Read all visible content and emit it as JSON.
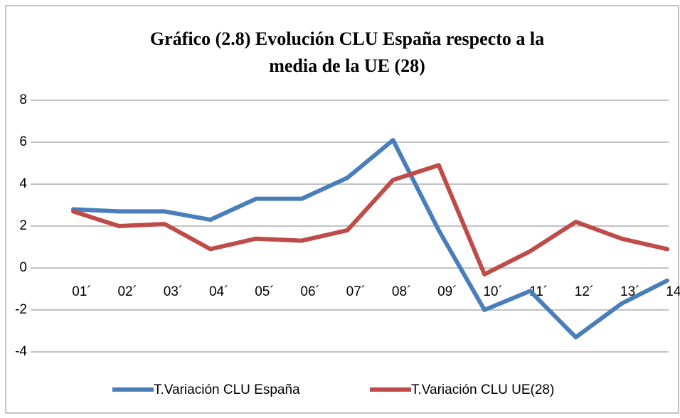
{
  "chart_data": {
    "type": "line",
    "title": [
      "Gráfico (2.8) Evolución CLU España respecto a la",
      "media de la UE (28)"
    ],
    "categories": [
      "01´",
      "02´",
      "03´",
      "04´",
      "05´",
      "06´",
      "07´",
      "08´",
      "09´",
      "10´",
      "11´",
      "12´",
      "13´",
      "14´"
    ],
    "series": [
      {
        "name": "T.Variación CLU España",
        "color": "#4a7ebb",
        "values": [
          2.8,
          2.7,
          2.7,
          2.3,
          3.3,
          3.3,
          4.3,
          6.1,
          1.8,
          -2.0,
          -1.1,
          -3.3,
          -1.7,
          -0.6
        ]
      },
      {
        "name": "T.Variación CLU UE(28)",
        "color": "#be4b48",
        "values": [
          2.7,
          2.0,
          2.1,
          0.9,
          1.4,
          1.3,
          1.8,
          4.2,
          4.9,
          -0.3,
          0.8,
          2.2,
          1.4,
          0.9
        ]
      }
    ],
    "ylim": [
      -4,
      8
    ],
    "yticks": [
      -4,
      -2,
      0,
      2,
      4,
      6,
      8
    ],
    "grid": true,
    "legend": "bottom"
  }
}
